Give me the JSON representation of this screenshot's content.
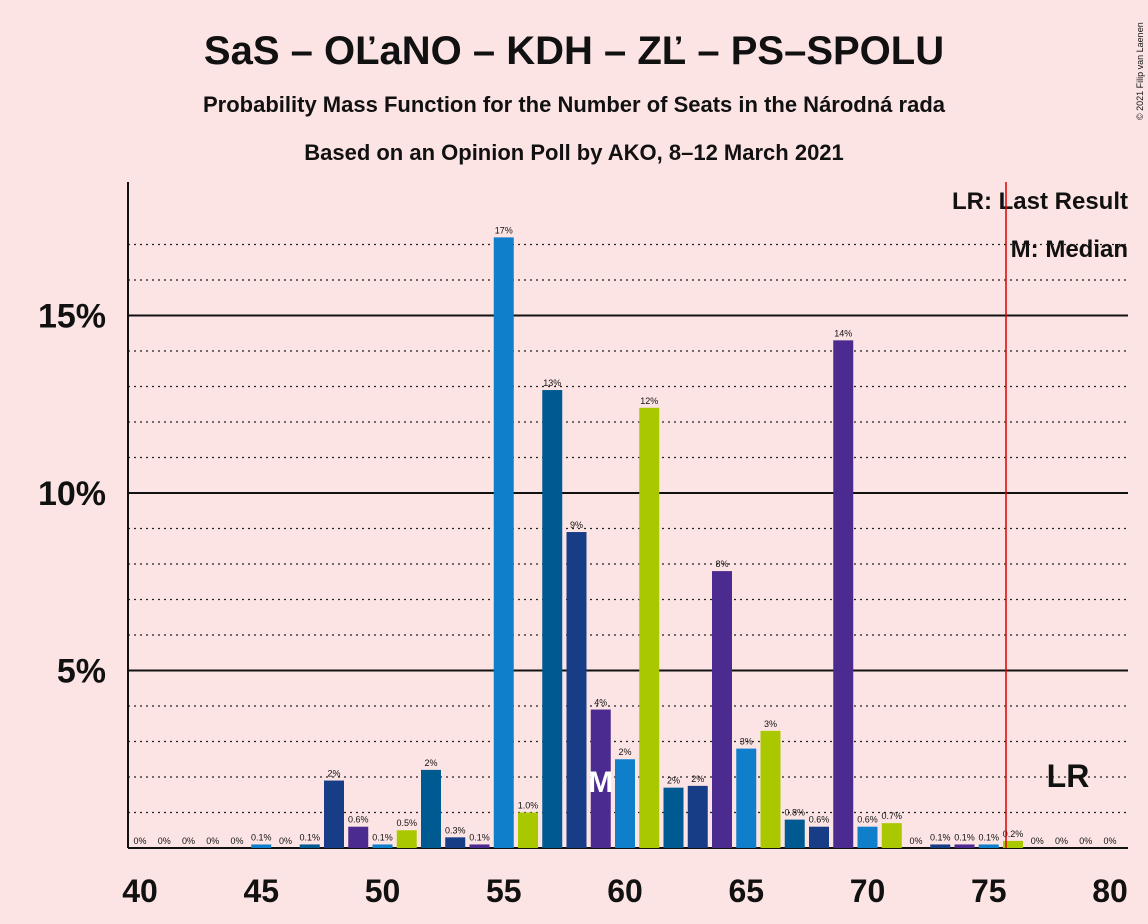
{
  "chart_data": {
    "type": "bar",
    "title": "SaS – OĽaNO – KDH – ZĽ – PS–SPOLU",
    "subtitle": "Probability Mass Function for the Number of Seats in the Národná rada",
    "subtitle2": "Based on an Opinion Poll by AKO, 8–12 March 2021",
    "copyright": "© 2021 Filip van Laenen",
    "legend": [
      "LR: Last Result",
      "M: Median"
    ],
    "median": 59,
    "median_label": "M",
    "last_result": 76,
    "last_result_label": "LR",
    "categories": [
      40,
      41,
      42,
      43,
      44,
      45,
      46,
      47,
      48,
      49,
      50,
      51,
      52,
      53,
      54,
      55,
      56,
      57,
      58,
      59,
      60,
      61,
      62,
      63,
      64,
      65,
      66,
      67,
      68,
      69,
      70,
      71,
      72,
      73,
      74,
      75,
      76,
      77,
      78,
      79,
      80
    ],
    "values": [
      0,
      0,
      0,
      0,
      0,
      0.1,
      0,
      0.1,
      1.9,
      0.6,
      0.1,
      0.5,
      2.2,
      0.3,
      0.1,
      17.2,
      1.0,
      12.9,
      8.9,
      3.9,
      2.5,
      12.4,
      1.7,
      1.75,
      7.8,
      2.8,
      3.3,
      0.8,
      0.6,
      14.3,
      0.6,
      0.7,
      0,
      0.1,
      0.1,
      0.1,
      0.2,
      0,
      0,
      0,
      0
    ],
    "value_labels": [
      "0%",
      "0%",
      "0%",
      "0%",
      "0%",
      "0.1%",
      "0%",
      "0.1%",
      "2%",
      "0.6%",
      "0.1%",
      "0.5%",
      "2%",
      "0.3%",
      "0.1%",
      "17%",
      "1.0%",
      "13%",
      "9%",
      "4%",
      "2%",
      "12%",
      "2%",
      "2%",
      "8%",
      "3%",
      "3%",
      "0.8%",
      "0.6%",
      "14%",
      "0.6%",
      "0.7%",
      "0%",
      "0.1%",
      "0.1%",
      "0.1%",
      "0.2%",
      "0%",
      "0%",
      "0%",
      "0%"
    ],
    "colors": [
      "#0f7ecb",
      "#aac800",
      "#005a92",
      "#173d87",
      "#4b2b8f"
    ],
    "xlim": [
      40,
      80
    ],
    "xticks": [
      40,
      45,
      50,
      55,
      60,
      65,
      70,
      75,
      80
    ],
    "ylim": [
      0,
      18.76
    ],
    "yticks": [
      {
        "value": 5,
        "label": "5%"
      },
      {
        "value": 10,
        "label": "10%"
      },
      {
        "value": 15,
        "label": "15%"
      }
    ],
    "minor_yticks": [
      1,
      2,
      3,
      4,
      6,
      7,
      8,
      9,
      11,
      12,
      13,
      14,
      16,
      17
    ]
  }
}
